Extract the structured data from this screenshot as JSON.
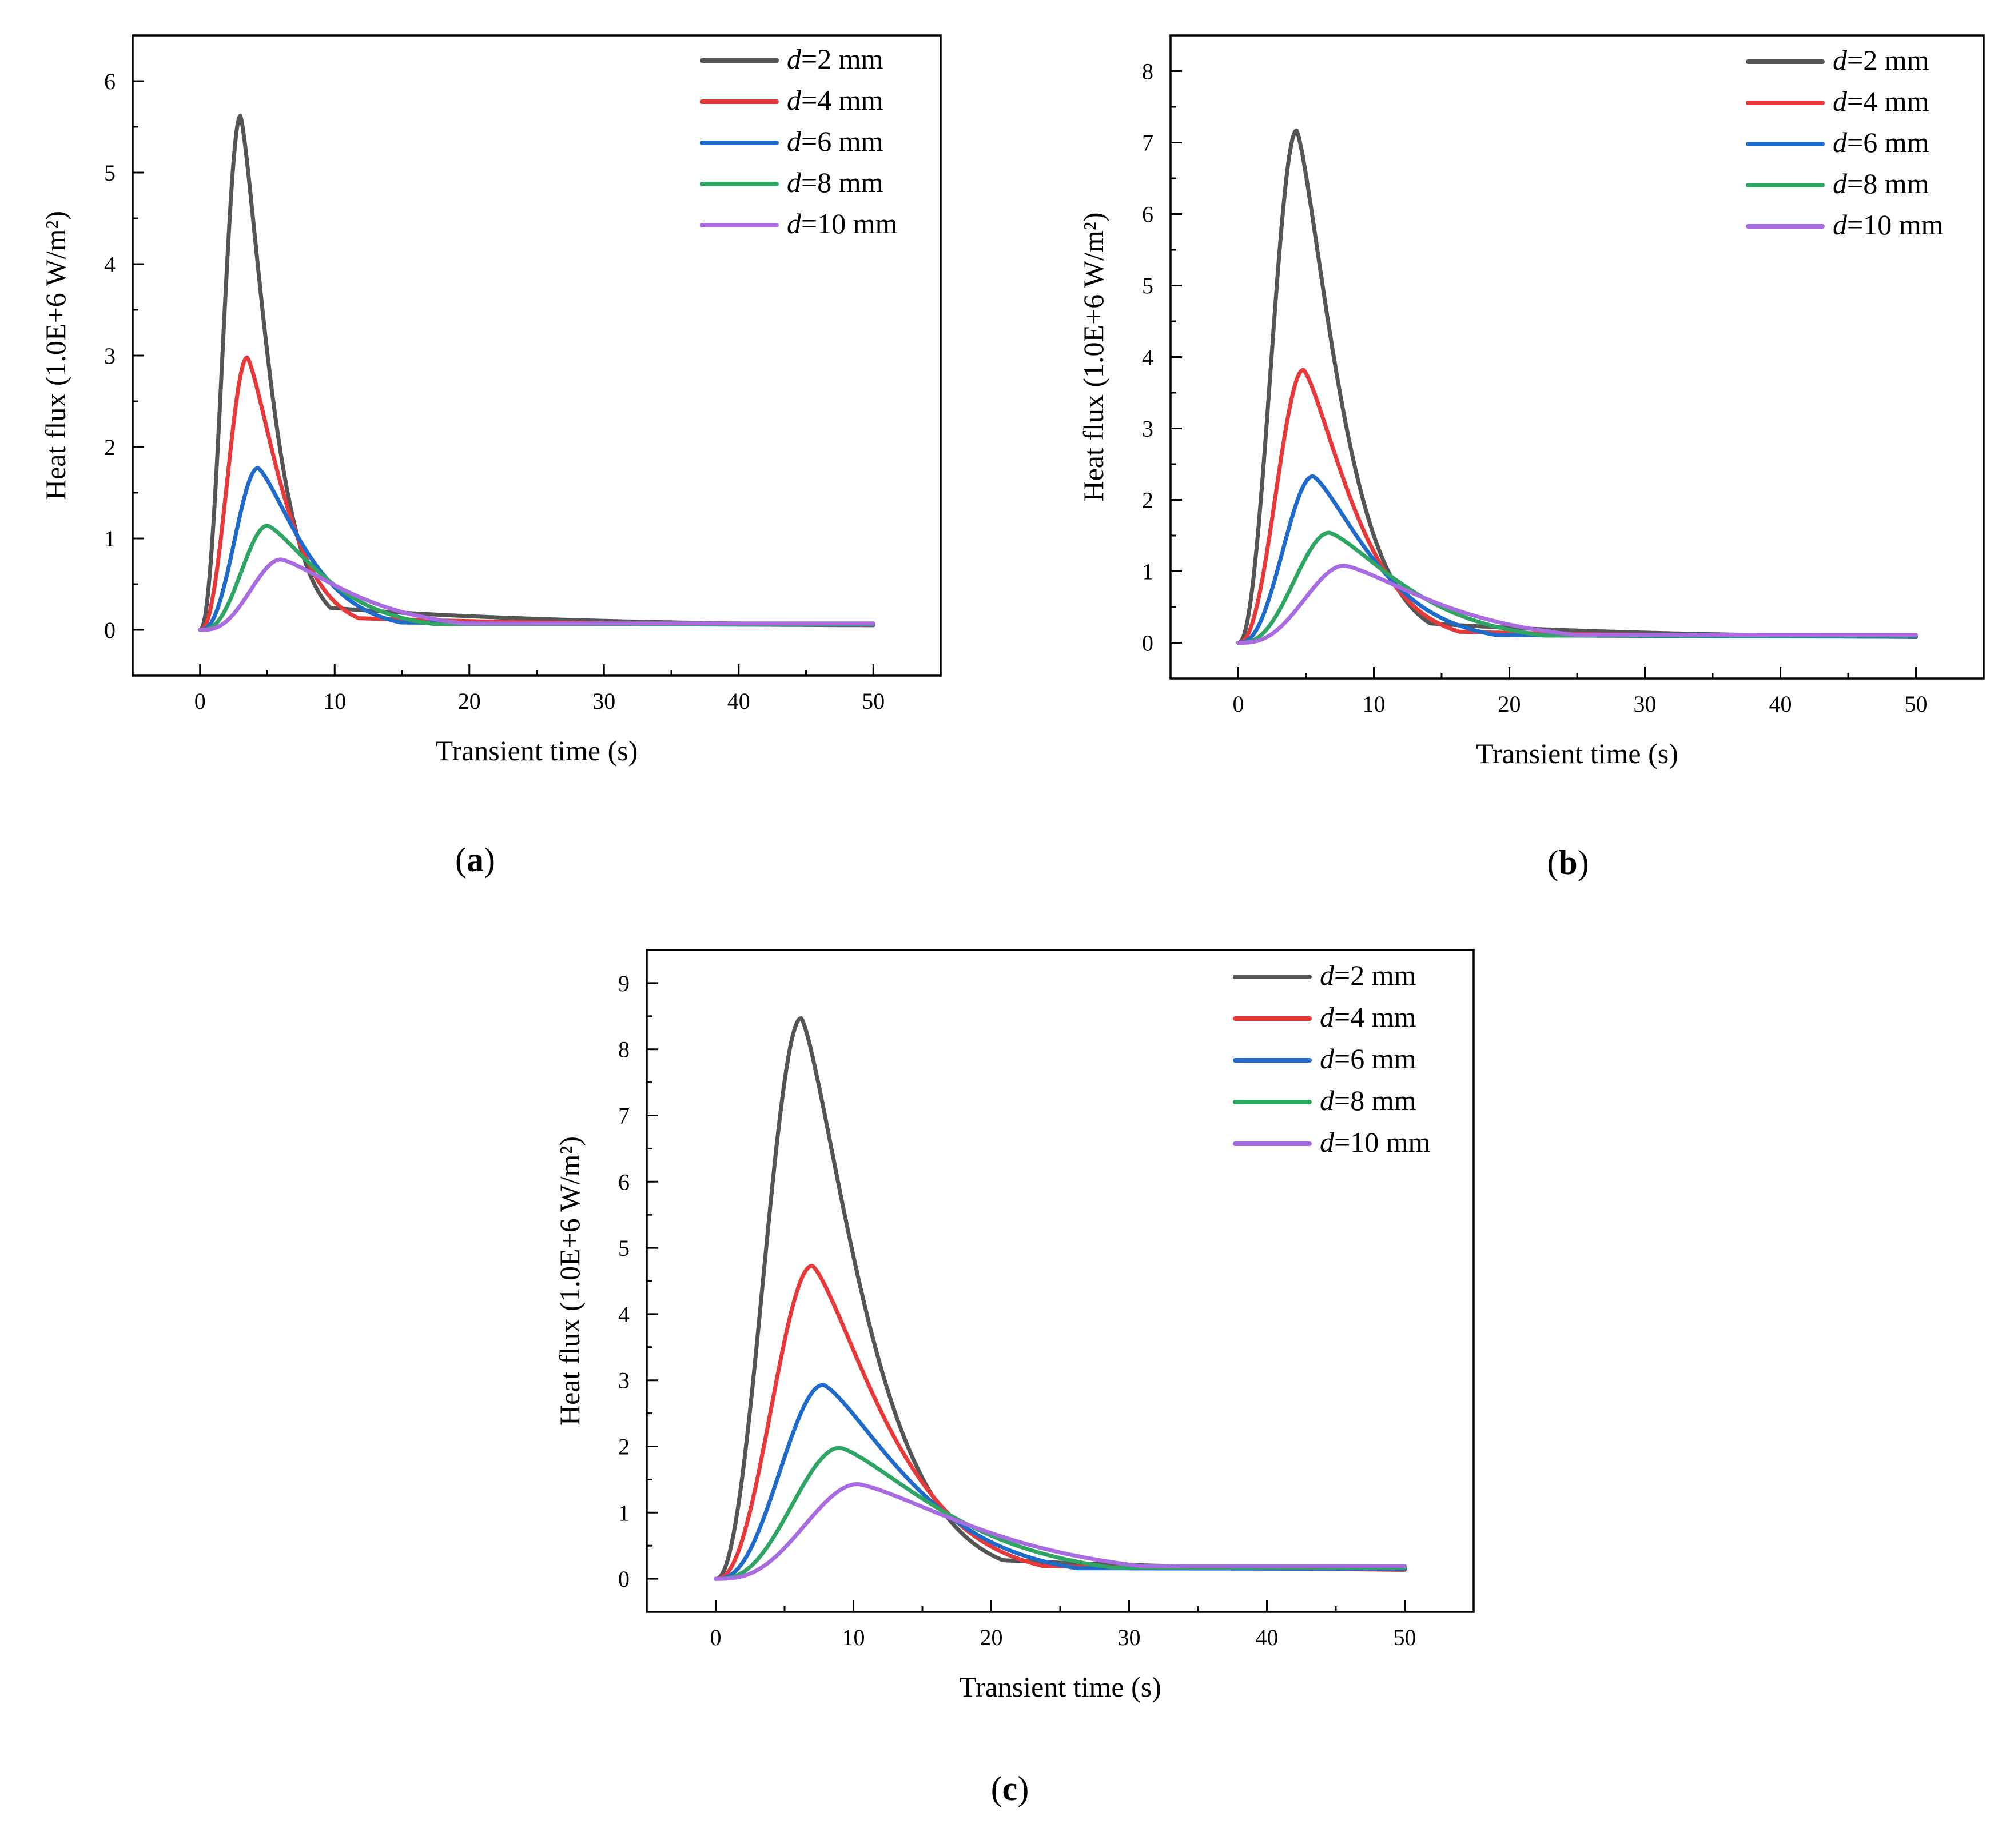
{
  "figure": {
    "panels": [
      {
        "id": "a",
        "label_open": "(",
        "label_letter": "a",
        "label_close": ")"
      },
      {
        "id": "b",
        "label_open": "(",
        "label_letter": "b",
        "label_close": ")"
      },
      {
        "id": "c",
        "label_open": "(",
        "label_letter": "c",
        "label_close": ")"
      }
    ]
  },
  "chart_data": [
    {
      "type": "line",
      "panel": "a",
      "xlabel": "Transient time (s)",
      "ylabel": "Heat flux (1.0E+6 W/m²)",
      "xlim": [
        -5,
        55
      ],
      "ylim": [
        -0.5,
        6.5
      ],
      "xticks": [
        0,
        10,
        20,
        30,
        40,
        50
      ],
      "yticks": [
        0,
        1,
        2,
        3,
        4,
        5,
        6
      ],
      "legend_position": "top-right",
      "series": [
        {
          "name": "d=2 mm",
          "legend_italic": "d",
          "legend_rest": "=2 mm",
          "color": "#555555",
          "peak": 5.62,
          "peak_time": 3.0,
          "rise_k": 0.04,
          "tail": 0.6,
          "end_value": 0.03
        },
        {
          "name": "d=4 mm",
          "legend_italic": "d",
          "legend_rest": "=4 mm",
          "color": "#e8393a",
          "peak": 2.98,
          "peak_time": 3.5,
          "rise_k": 0.06,
          "tail": 0.7,
          "end_value": 0.04
        },
        {
          "name": "d=6 mm",
          "legend_italic": "d",
          "legend_rest": "=6 mm",
          "color": "#1f6bcc",
          "peak": 1.77,
          "peak_time": 4.3,
          "rise_k": 0.085,
          "tail": 0.8,
          "end_value": 0.05
        },
        {
          "name": "d=8 mm",
          "legend_italic": "d",
          "legend_rest": "=8 mm",
          "color": "#2fa564",
          "peak": 1.14,
          "peak_time": 5.0,
          "rise_k": 0.11,
          "tail": 0.9,
          "end_value": 0.06
        },
        {
          "name": "d=10 mm",
          "legend_italic": "d",
          "legend_rest": "=10 mm",
          "color": "#a86be0",
          "peak": 0.77,
          "peak_time": 6.0,
          "rise_k": 0.13,
          "tail": 1.0,
          "end_value": 0.07
        }
      ]
    },
    {
      "type": "line",
      "panel": "b",
      "xlabel": "Transient time (s)",
      "ylabel": "Heat flux (1.0E+6 W/m²)",
      "xlim": [
        -5,
        55
      ],
      "ylim": [
        -0.5,
        8.5
      ],
      "xticks": [
        0,
        10,
        20,
        30,
        40,
        50
      ],
      "yticks": [
        0,
        1,
        2,
        3,
        4,
        5,
        6,
        7,
        8
      ],
      "legend_position": "top-right",
      "series": [
        {
          "name": "d=2 mm",
          "legend_italic": "d",
          "legend_rest": "=2 mm",
          "color": "#555555",
          "peak": 7.17,
          "peak_time": 4.3,
          "rise_k": 0.04,
          "tail": 0.6,
          "end_value": 0.05
        },
        {
          "name": "d=4 mm",
          "legend_italic": "d",
          "legend_rest": "=4 mm",
          "color": "#e8393a",
          "peak": 3.82,
          "peak_time": 4.8,
          "rise_k": 0.06,
          "tail": 0.7,
          "end_value": 0.07
        },
        {
          "name": "d=6 mm",
          "legend_italic": "d",
          "legend_rest": "=6 mm",
          "color": "#1f6bcc",
          "peak": 2.33,
          "peak_time": 5.5,
          "rise_k": 0.085,
          "tail": 0.8,
          "end_value": 0.08
        },
        {
          "name": "d=8 mm",
          "legend_italic": "d",
          "legend_rest": "=8 mm",
          "color": "#2fa564",
          "peak": 1.54,
          "peak_time": 6.7,
          "rise_k": 0.11,
          "tail": 0.9,
          "end_value": 0.1
        },
        {
          "name": "d=10 mm",
          "legend_italic": "d",
          "legend_rest": "=10 mm",
          "color": "#a86be0",
          "peak": 1.08,
          "peak_time": 7.8,
          "rise_k": 0.13,
          "tail": 1.0,
          "end_value": 0.11
        }
      ]
    },
    {
      "type": "line",
      "panel": "c",
      "xlabel": "Transient time (s)",
      "ylabel": "Heat flux (1.0E+6 W/m²)",
      "xlim": [
        -5,
        55
      ],
      "ylim": [
        -0.5,
        9.5
      ],
      "xticks": [
        0,
        10,
        20,
        30,
        40,
        50
      ],
      "yticks": [
        0,
        1,
        2,
        3,
        4,
        5,
        6,
        7,
        8,
        9
      ],
      "legend_position": "top-right",
      "series": [
        {
          "name": "d=2 mm",
          "legend_italic": "d",
          "legend_rest": "=2 mm",
          "color": "#555555",
          "peak": 8.47,
          "peak_time": 6.2,
          "rise_k": 0.04,
          "tail": 0.6,
          "end_value": 0.1
        },
        {
          "name": "d=4 mm",
          "legend_italic": "d",
          "legend_rest": "=4 mm",
          "color": "#e8393a",
          "peak": 4.73,
          "peak_time": 7.0,
          "rise_k": 0.06,
          "tail": 0.7,
          "end_value": 0.13
        },
        {
          "name": "d=6 mm",
          "legend_italic": "d",
          "legend_rest": "=6 mm",
          "color": "#1f6bcc",
          "peak": 2.93,
          "peak_time": 7.8,
          "rise_k": 0.085,
          "tail": 0.8,
          "end_value": 0.15
        },
        {
          "name": "d=8 mm",
          "legend_italic": "d",
          "legend_rest": "=8 mm",
          "color": "#2fa564",
          "peak": 1.98,
          "peak_time": 9.0,
          "rise_k": 0.11,
          "tail": 0.9,
          "end_value": 0.17
        },
        {
          "name": "d=10 mm",
          "legend_italic": "d",
          "legend_rest": "=10 mm",
          "color": "#a86be0",
          "peak": 1.43,
          "peak_time": 10.3,
          "rise_k": 0.13,
          "tail": 1.0,
          "end_value": 0.19
        }
      ]
    }
  ]
}
